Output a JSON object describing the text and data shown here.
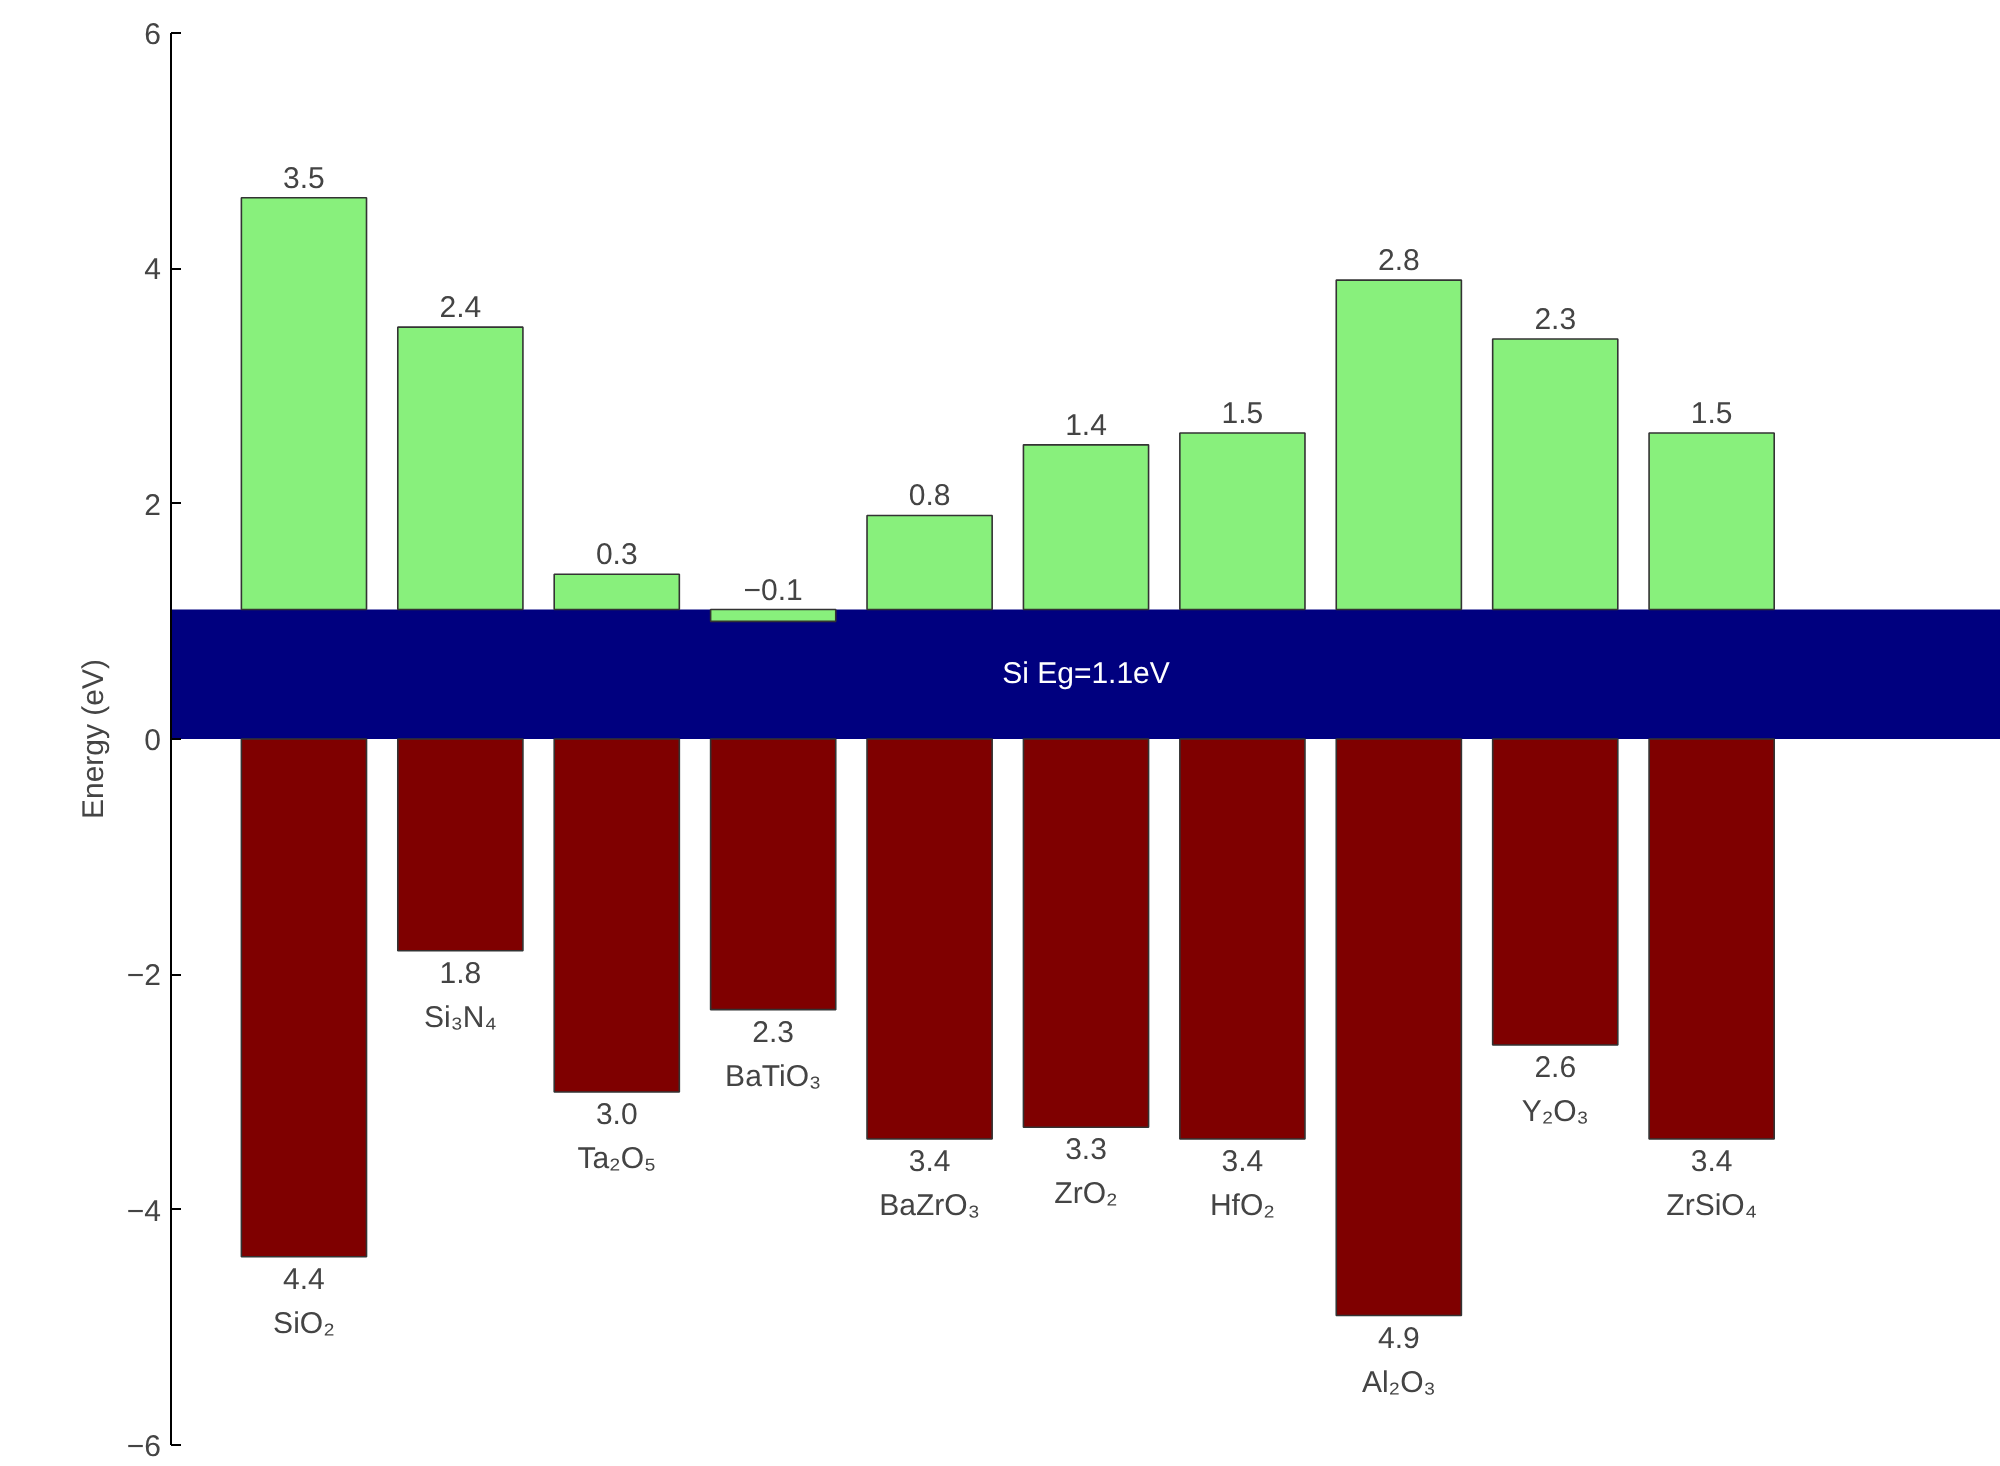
{
  "chart_data": {
    "type": "bar",
    "ylabel": "Energy (eV)",
    "categories": [
      "SiO₂",
      "Si₃N₄",
      "Ta₂O₅",
      "BaTiO₃",
      "BaZrO₃",
      "ZrO₂",
      "HfO₂",
      "Al₂O₃",
      "Y₂O₃",
      "ZrSiO₄"
    ],
    "series": [
      {
        "color": "#88f07c",
        "base": [
          1.1,
          1.1,
          1.1,
          1.1,
          1.1,
          1.1,
          1.1,
          1.1,
          1.1,
          1.1
        ],
        "values": [
          3.5,
          2.4,
          0.3,
          -0.1,
          0.8,
          1.4,
          1.5,
          2.8,
          2.3,
          1.5
        ],
        "value_labels": [
          "3.5",
          "2.4",
          "0.3",
          "−0.1",
          "0.8",
          "1.4",
          "1.5",
          "2.8",
          "2.3",
          "1.5"
        ]
      },
      {
        "color": "#7f0000",
        "base": [
          0,
          0,
          0,
          0,
          0,
          0,
          0,
          0,
          0,
          0
        ],
        "values": [
          -4.4,
          -1.8,
          -3.0,
          -2.3,
          -3.4,
          -3.3,
          -3.4,
          -4.9,
          -2.6,
          -3.4
        ],
        "value_labels": [
          "4.4",
          "1.8",
          "3.0",
          "2.3",
          "3.4",
          "3.3",
          "3.4",
          "4.9",
          "2.6",
          "3.4"
        ]
      }
    ],
    "bands": [
      {
        "axis": "y",
        "from": 0,
        "to": 1.1,
        "label": "Si Eg=1.1eV",
        "color": "#00007f"
      }
    ],
    "ylim": [
      -6,
      6
    ],
    "yticks": [
      {
        "value": -6,
        "label": "−6"
      },
      {
        "value": -4,
        "label": "−4"
      },
      {
        "value": -2,
        "label": "−2"
      },
      0,
      2,
      4,
      6
    ],
    "tick_labels": "y",
    "grid": false
  }
}
